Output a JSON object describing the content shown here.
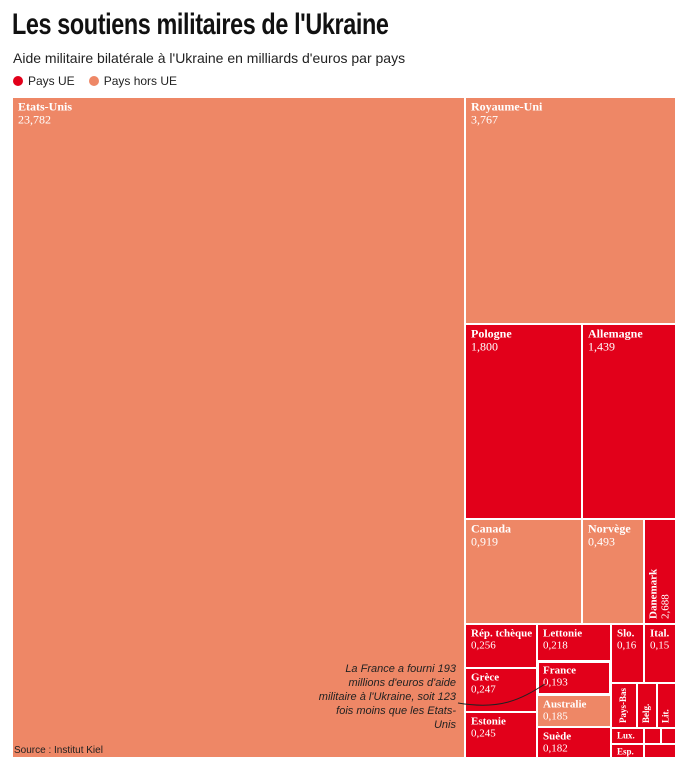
{
  "chart_data": {
    "type": "treemap",
    "title": "Les soutiens militaires de l'Ukraine",
    "subtitle": "Aide militaire bilatérale à l'Ukraine en milliards d'euros par pays",
    "source": "Source : Institut Kiel",
    "annotation": "La France a fourni 193 millions d'euros d'aide militaire à l'Ukraine, soit 123 fois moins que les Etats-Unis",
    "series": [
      {
        "name": "Pays UE",
        "color": "#e2001a",
        "categories": [
          "Pologne",
          "Allemagne",
          "Danemark",
          "Rép. tchèque",
          "Grèce",
          "Estonie",
          "Lettonie",
          "France",
          "Suède",
          "Slo.",
          "Ital.",
          "Pays-Bas",
          "Belg.",
          "Lit.",
          "Lux.",
          "Esp.",
          null,
          null,
          null
        ],
        "values": [
          1.8,
          1.439,
          2.688,
          0.256,
          0.247,
          0.245,
          0.218,
          0.193,
          0.182,
          0.16,
          0.15,
          0.1,
          0.07,
          0.06,
          0.04,
          0.03,
          0.02,
          0.02,
          0.02
        ],
        "value_labels": [
          "1,800",
          "1,439",
          "2,688",
          "0,256",
          "0,247",
          "0,245",
          "0,218",
          "0,193",
          "0,182",
          "0,16",
          "0,15",
          null,
          null,
          null,
          null,
          null,
          null,
          null,
          null
        ]
      },
      {
        "name": "Pays hors UE",
        "color": "#ee8766",
        "categories": [
          "Etats-Unis",
          "Royaume-Uni",
          "Canada",
          "Norvège",
          "Australie"
        ],
        "values": [
          23.782,
          3.767,
          0.919,
          0.493,
          0.185
        ],
        "value_labels": [
          "23,782",
          "3,767",
          "0,919",
          "0,493",
          "0,185"
        ]
      }
    ]
  }
}
